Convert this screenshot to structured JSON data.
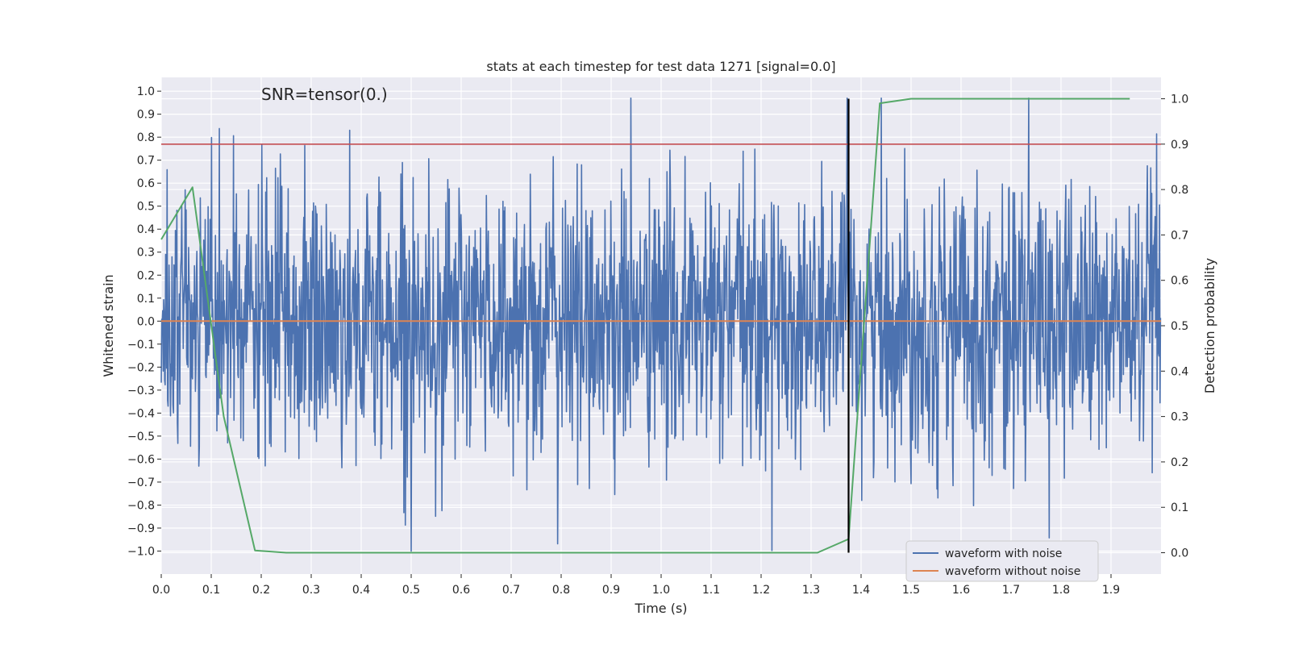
{
  "chart_data": {
    "type": "line",
    "title": "stats at each timestep for test data 1271 [signal=0.0]",
    "xlabel": "Time (s)",
    "ylabel": "Whitened strain",
    "y2label": "Detection probability",
    "xlim": [
      0.0,
      2.0
    ],
    "ylim": [
      -1.1,
      1.06
    ],
    "y2lim": [
      -0.047,
      1.047
    ],
    "grid": true,
    "x_ticks": [
      "0.0",
      "0.1",
      "0.2",
      "0.3",
      "0.4",
      "0.5",
      "0.6",
      "0.7",
      "0.8",
      "0.9",
      "1.0",
      "1.1",
      "1.2",
      "1.3",
      "1.4",
      "1.5",
      "1.6",
      "1.7",
      "1.8",
      "1.9"
    ],
    "y_ticks": [
      "1.0",
      "0.9",
      "0.8",
      "0.7",
      "0.6",
      "0.5",
      "0.4",
      "0.3",
      "0.2",
      "0.1",
      "0.0",
      "−0.1",
      "−0.2",
      "−0.3",
      "−0.4",
      "−0.5",
      "−0.6",
      "−0.7",
      "−0.8",
      "−0.9",
      "−1.0"
    ],
    "y2_ticks": [
      "1.0",
      "0.9",
      "0.8",
      "0.7",
      "0.6",
      "0.5",
      "0.4",
      "0.3",
      "0.2",
      "0.1",
      "0.0"
    ],
    "annotation": "SNR=tensor(0.)",
    "threshold": {
      "value": 0.9,
      "axis": "right",
      "color": "#c44e52"
    },
    "marker_line": {
      "x": 1.375,
      "color": "#000000"
    },
    "series": [
      {
        "name": "waveform with noise",
        "axis": "left",
        "color": "#4c72b0",
        "kind": "noise",
        "sample_count": 2048,
        "range": [
          -1.0,
          0.97
        ],
        "rms": 0.3
      },
      {
        "name": "waveform without noise",
        "axis": "left",
        "color": "#dd8452",
        "x": [
          0.0,
          2.0
        ],
        "values": [
          0.0,
          0.0
        ]
      },
      {
        "name": "detection probability",
        "axis": "right",
        "color": "#55a868",
        "x": [
          0.0,
          0.0625,
          0.125,
          0.1875,
          0.25,
          0.3125,
          0.375,
          0.4375,
          0.5,
          0.5625,
          0.625,
          0.6875,
          0.75,
          0.8125,
          0.875,
          0.9375,
          1.0,
          1.0625,
          1.125,
          1.1875,
          1.25,
          1.3125,
          1.375,
          1.4375,
          1.5,
          1.5625,
          1.625,
          1.6875,
          1.75,
          1.8125,
          1.875,
          1.9375
        ],
        "values": [
          0.69,
          0.805,
          0.3,
          0.005,
          0.0,
          0.0,
          0.0,
          0.0,
          0.0,
          0.0,
          0.0,
          0.0,
          0.0,
          0.0,
          0.0,
          0.0,
          0.0,
          0.0,
          0.0,
          0.0,
          0.0,
          0.0,
          0.03,
          0.99,
          1.0,
          1.0,
          1.0,
          1.0,
          1.0,
          1.0,
          1.0,
          1.0
        ]
      }
    ],
    "legend": {
      "location": "lower-right",
      "entries": [
        {
          "label": "waveform with noise",
          "color": "#4c72b0"
        },
        {
          "label": "waveform without noise",
          "color": "#dd8452"
        }
      ]
    },
    "colors": {
      "plot_bg": "#eaeaf2",
      "grid": "#ffffff",
      "text": "#262626"
    }
  }
}
